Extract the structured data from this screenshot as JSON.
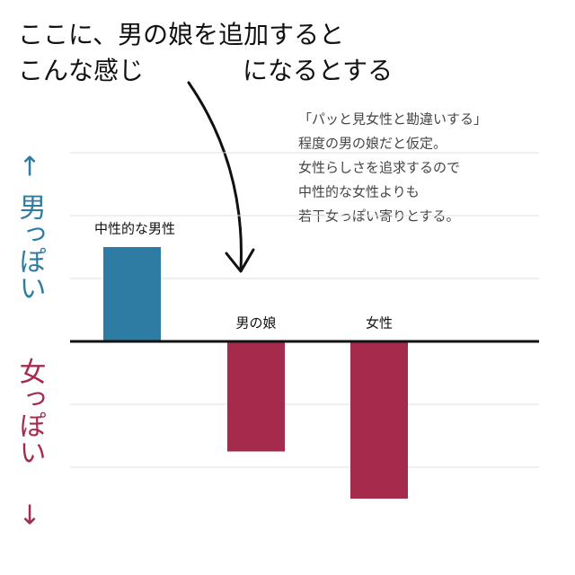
{
  "chart_data": {
    "type": "bar",
    "title": [
      "ここに、男の娘を追加すると",
      "こんな感じ",
      "になるとする"
    ],
    "annotation": [
      "「パッと見女性と勘違いする」",
      "程度の男の娘だと仮定。",
      "女性らしさを追求するので",
      "中性的な女性よりも",
      "若干女っぽい寄りとする。"
    ],
    "y_label_top": "男っぽい",
    "y_label_top_arrow": "↑",
    "y_label_bottom": "女っぽい",
    "y_label_bottom_arrow": "↓",
    "y_label_top_color": "#2e7ba3",
    "y_label_bottom_color": "#a52b4d",
    "categories": [
      "中性的な男性",
      "男の娘",
      "女性"
    ],
    "values": [
      1.5,
      -1.75,
      -2.5
    ],
    "colors": [
      "#2e7ba3",
      "#a52b4d",
      "#a52b4d"
    ],
    "ylim": [
      -3,
      3
    ],
    "yticks": [
      -2,
      -1,
      0,
      1,
      2,
      3
    ],
    "grid": true
  }
}
